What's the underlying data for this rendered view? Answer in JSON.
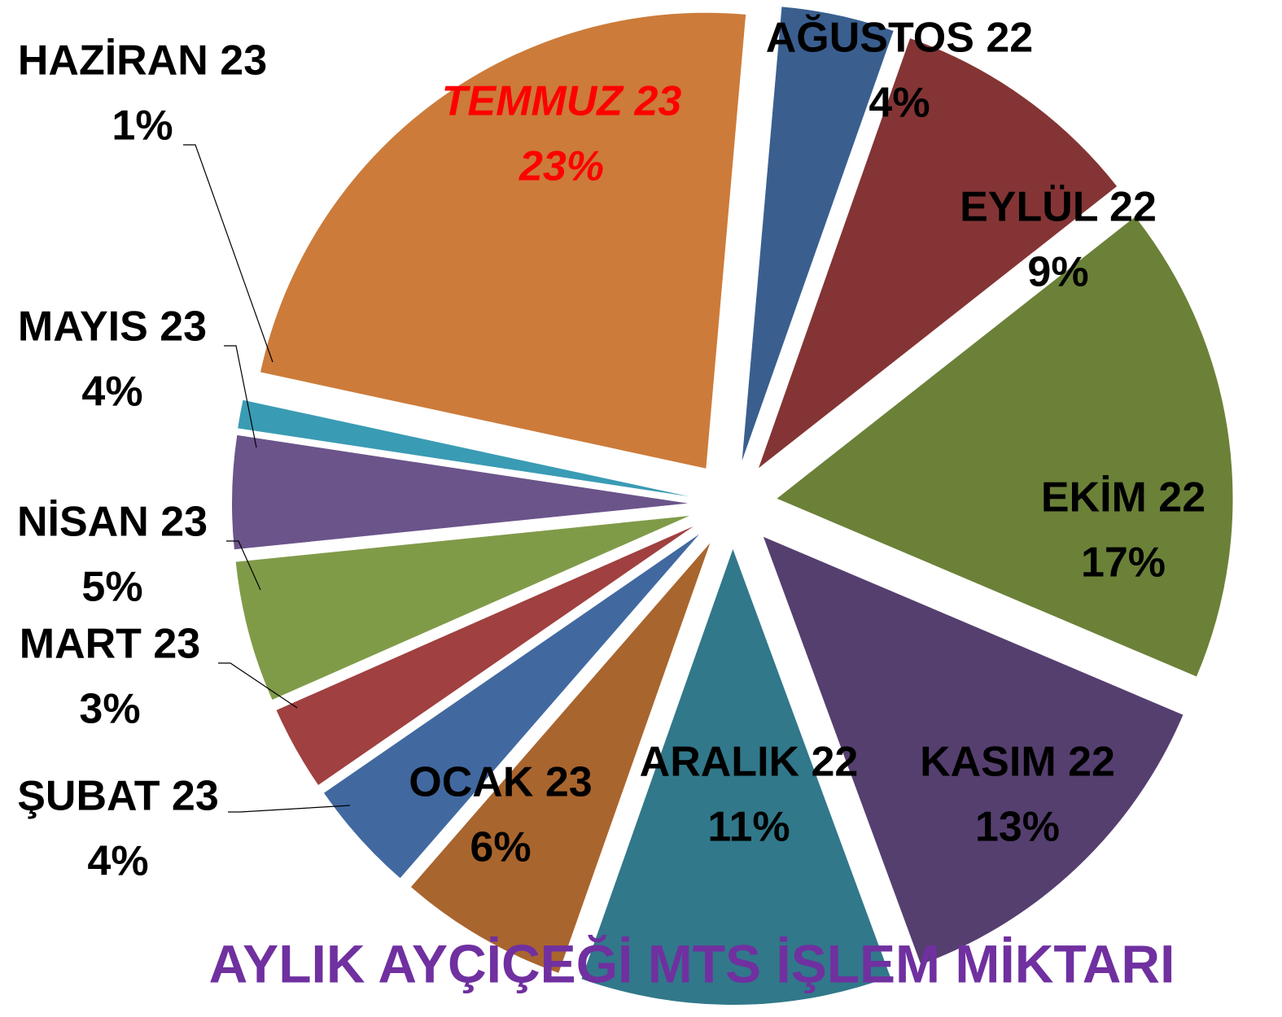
{
  "chart_data": {
    "type": "pie",
    "title": "AYLIK AYÇİÇEĞİ MTS İŞLEM MİKTARI",
    "title_color": "#7030a0",
    "categories": [
      "AĞUSTOS 22",
      "EYLÜL 22",
      "EKİM 22",
      "KASIM 22",
      "ARALIK 22",
      "OCAK 23",
      "ŞUBAT 23",
      "MART 23",
      "NİSAN 23",
      "MAYIS 23",
      "HAZİRAN 23",
      "TEMMUZ 23"
    ],
    "values": [
      4,
      9,
      17,
      13,
      11,
      6,
      4,
      3,
      5,
      4,
      1,
      23
    ],
    "value_labels": [
      "4%",
      "9%",
      "17%",
      "13%",
      "11%",
      "6%",
      "4%",
      "3%",
      "5%",
      "4%",
      "1%",
      "23%"
    ],
    "colors": [
      "#3a5f8f",
      "#843434",
      "#6b8138",
      "#553f6f",
      "#31788a",
      "#a9652e",
      "#4169a0",
      "#a04040",
      "#809b48",
      "#6b548a",
      "#3a9bb4",
      "#cc7b3a"
    ],
    "highlight_index": 11,
    "highlight_color": "#ff0000"
  }
}
